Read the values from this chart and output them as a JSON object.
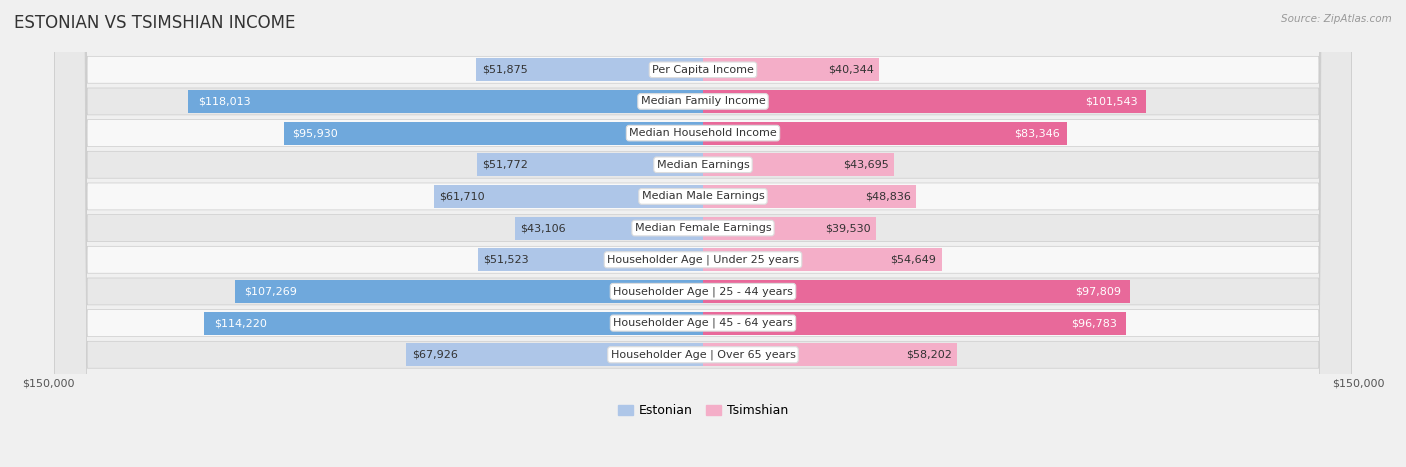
{
  "title": "ESTONIAN VS TSIMSHIAN INCOME",
  "source": "Source: ZipAtlas.com",
  "categories": [
    "Per Capita Income",
    "Median Family Income",
    "Median Household Income",
    "Median Earnings",
    "Median Male Earnings",
    "Median Female Earnings",
    "Householder Age | Under 25 years",
    "Householder Age | 25 - 44 years",
    "Householder Age | 45 - 64 years",
    "Householder Age | Over 65 years"
  ],
  "estonian_values": [
    51875,
    118013,
    95930,
    51772,
    61710,
    43106,
    51523,
    107269,
    114220,
    67926
  ],
  "tsimshian_values": [
    40344,
    101543,
    83346,
    43695,
    48836,
    39530,
    54649,
    97809,
    96783,
    58202
  ],
  "estonian_labels": [
    "$51,875",
    "$118,013",
    "$95,930",
    "$51,772",
    "$61,710",
    "$43,106",
    "$51,523",
    "$107,269",
    "$114,220",
    "$67,926"
  ],
  "tsimshian_labels": [
    "$40,344",
    "$101,543",
    "$83,346",
    "$43,695",
    "$48,836",
    "$39,530",
    "$54,649",
    "$97,809",
    "$96,783",
    "$58,202"
  ],
  "estonian_color_light": "#aec6e8",
  "estonian_color_dark": "#6fa8dc",
  "tsimshian_color_light": "#f4aec8",
  "tsimshian_color_dark": "#e8699a",
  "max_value": 150000,
  "bg_color": "#f0f0f0",
  "row_bg_white": "#f8f8f8",
  "row_bg_gray": "#e8e8e8",
  "label_bg": "#ffffff",
  "title_fontsize": 12,
  "cat_fontsize": 8,
  "val_fontsize": 8,
  "axis_fontsize": 8,
  "legend_fontsize": 9,
  "large_threshold": 80000
}
